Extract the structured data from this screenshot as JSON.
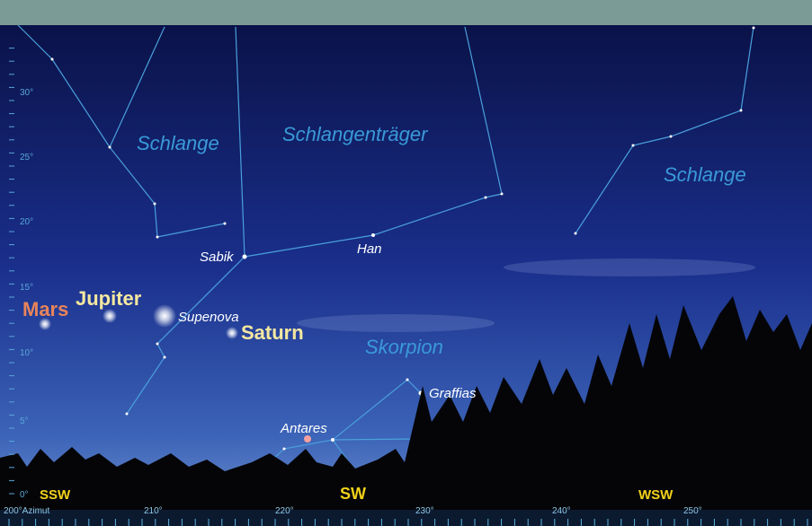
{
  "constellations": [
    "Schlange",
    "Schlangenträger",
    "Schlange",
    "Skorpion"
  ],
  "stars": [
    "Sabik",
    "Han",
    "Supenova",
    "Antares",
    "Graffias"
  ],
  "planets": [
    "Mars",
    "Jupiter",
    "Saturn"
  ],
  "altitude_labels": [
    "30°",
    "25°",
    "20°",
    "15°",
    "10°",
    "5°",
    "0°"
  ],
  "azimuth_labels": [
    "200°Azimut",
    "210°",
    "220°",
    "230°",
    "240°",
    "250°"
  ],
  "directions": [
    "SSW",
    "SW",
    "WSW"
  ]
}
